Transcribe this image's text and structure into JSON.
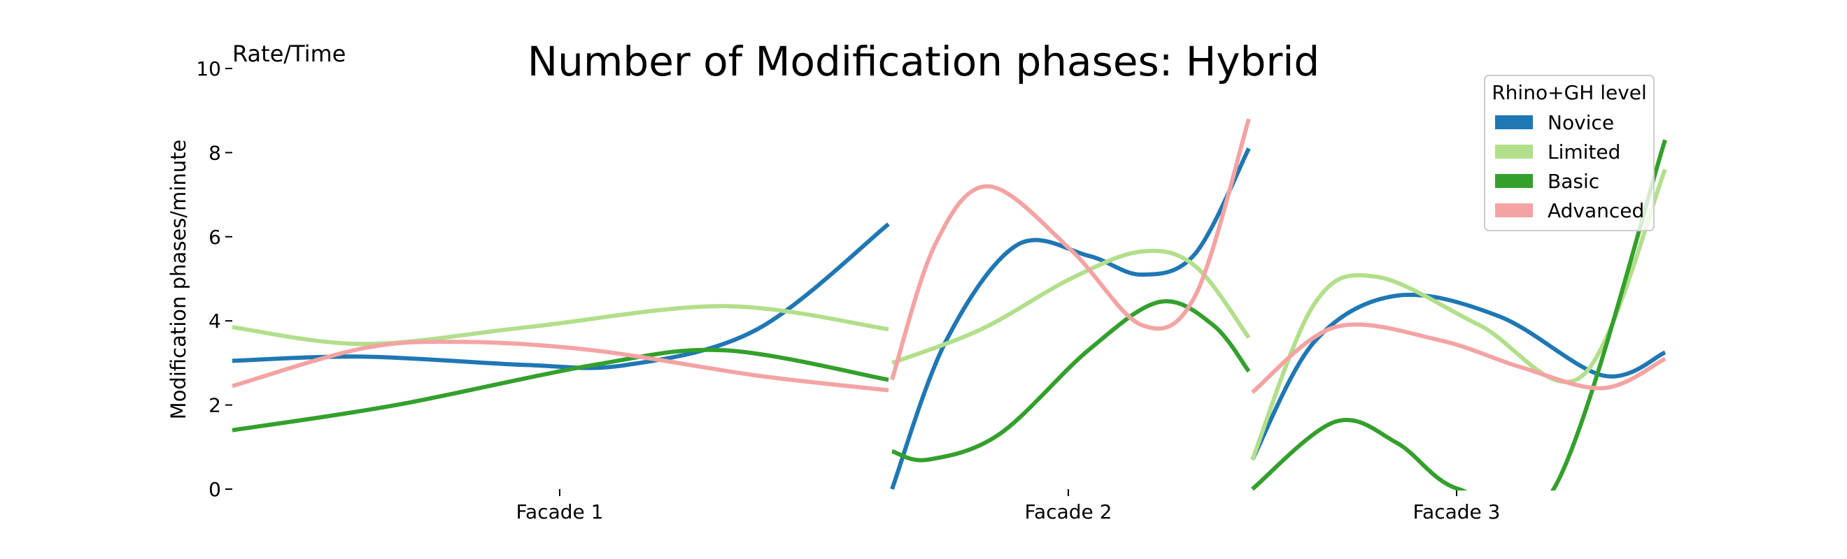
{
  "chart_data": {
    "type": "line",
    "title": "Number of Modification phases: Hybrid",
    "corner_label": "Rate/Time",
    "ylabel": "Modification phases/minute",
    "xlabel": "",
    "ylim": [
      0,
      10
    ],
    "yticks": [
      "0",
      "2",
      "4",
      "6",
      "8",
      "10"
    ],
    "grid": false,
    "legend": {
      "title": "Rhino+GH level",
      "placement": "top-right"
    },
    "categories": [
      "Facade 1",
      "Facade 2",
      "Facade 3"
    ],
    "segments": [
      {
        "category": "Facade 1",
        "t_start": 0,
        "t_end": 1
      },
      {
        "category": "Facade 2",
        "t_start": 0,
        "t_end": 1
      },
      {
        "category": "Facade 3",
        "t_start": 0,
        "t_end": 1
      }
    ],
    "series": [
      {
        "name": "Novice",
        "color": "#1f77b4",
        "segments": [
          [
            [
              0.0,
              3.05
            ],
            [
              0.2,
              3.15
            ],
            [
              0.45,
              2.95
            ],
            [
              0.6,
              2.95
            ],
            [
              0.8,
              3.8
            ],
            [
              1.0,
              6.3
            ]
          ],
          [
            [
              0.0,
              0.0
            ],
            [
              0.15,
              3.5
            ],
            [
              0.35,
              5.8
            ],
            [
              0.55,
              5.55
            ],
            [
              0.7,
              5.1
            ],
            [
              0.85,
              5.6
            ],
            [
              1.0,
              8.1
            ]
          ],
          [
            [
              0.0,
              0.7
            ],
            [
              0.15,
              3.5
            ],
            [
              0.35,
              4.6
            ],
            [
              0.6,
              4.1
            ],
            [
              0.85,
              2.7
            ],
            [
              1.0,
              3.25
            ]
          ]
        ]
      },
      {
        "name": "Limited",
        "color": "#b2df8a",
        "segments": [
          [
            [
              0.0,
              3.85
            ],
            [
              0.2,
              3.45
            ],
            [
              0.45,
              3.85
            ],
            [
              0.75,
              4.35
            ],
            [
              1.0,
              3.8
            ]
          ],
          [
            [
              0.0,
              3.0
            ],
            [
              0.25,
              3.8
            ],
            [
              0.5,
              5.0
            ],
            [
              0.7,
              5.65
            ],
            [
              0.85,
              5.3
            ],
            [
              1.0,
              3.6
            ]
          ],
          [
            [
              0.0,
              0.7
            ],
            [
              0.15,
              4.4
            ],
            [
              0.3,
              5.05
            ],
            [
              0.55,
              3.9
            ],
            [
              0.8,
              2.7
            ],
            [
              1.0,
              7.6
            ]
          ]
        ]
      },
      {
        "name": "Basic",
        "color": "#33a02c",
        "segments": [
          [
            [
              0.0,
              1.4
            ],
            [
              0.25,
              2.0
            ],
            [
              0.55,
              2.95
            ],
            [
              0.75,
              3.3
            ],
            [
              1.0,
              2.6
            ]
          ],
          [
            [
              0.0,
              0.9
            ],
            [
              0.1,
              0.7
            ],
            [
              0.3,
              1.3
            ],
            [
              0.55,
              3.3
            ],
            [
              0.75,
              4.45
            ],
            [
              0.9,
              3.9
            ],
            [
              1.0,
              2.8
            ]
          ],
          [
            [
              0.0,
              0.0
            ],
            [
              0.2,
              1.6
            ],
            [
              0.35,
              1.1
            ],
            [
              0.5,
              0.0
            ],
            [
              0.73,
              0.0
            ],
            [
              1.0,
              8.3
            ]
          ]
        ]
      },
      {
        "name": "Advanced",
        "color": "#f4a3a3",
        "segments": [
          [
            [
              0.0,
              2.45
            ],
            [
              0.2,
              3.35
            ],
            [
              0.35,
              3.5
            ],
            [
              0.55,
              3.3
            ],
            [
              0.8,
              2.7
            ],
            [
              1.0,
              2.35
            ]
          ],
          [
            [
              0.0,
              2.6
            ],
            [
              0.12,
              5.8
            ],
            [
              0.27,
              7.2
            ],
            [
              0.5,
              5.7
            ],
            [
              0.7,
              3.9
            ],
            [
              0.85,
              4.6
            ],
            [
              1.0,
              8.8
            ]
          ],
          [
            [
              0.0,
              2.3
            ],
            [
              0.2,
              3.85
            ],
            [
              0.45,
              3.55
            ],
            [
              0.65,
              2.9
            ],
            [
              0.85,
              2.4
            ],
            [
              1.0,
              3.1
            ]
          ]
        ]
      }
    ]
  }
}
